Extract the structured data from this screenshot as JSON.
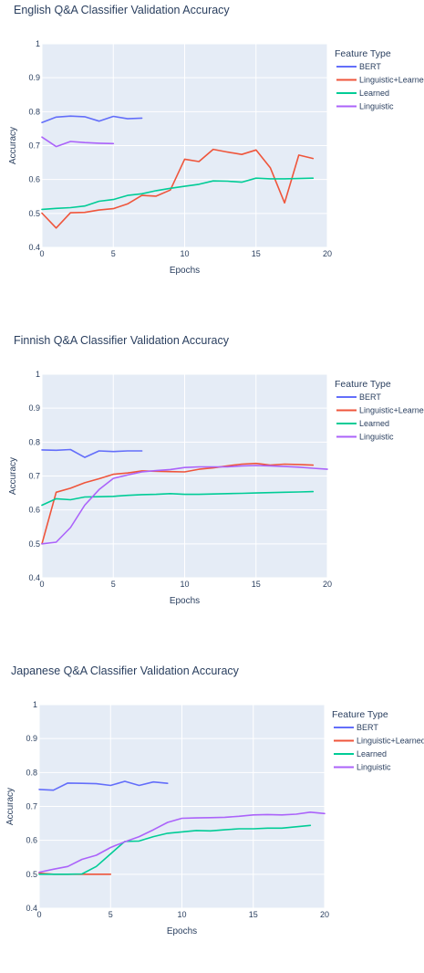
{
  "colors": {
    "BERT": "#636efa",
    "Linguistic+Learned": "#ef553b",
    "Learned": "#00cc96",
    "Linguistic": "#ab63fa",
    "plot_bg": "#e5ecf6",
    "grid": "#ffffff"
  },
  "chart_data": [
    {
      "type": "line",
      "title": "English Q&A Classifier Validation Accuracy",
      "xlabel": "Epochs",
      "ylabel": "Accuracy",
      "xlim": [
        0,
        20
      ],
      "ylim": [
        0.4,
        1
      ],
      "xticks": [
        "0",
        "5",
        "10",
        "15",
        "20"
      ],
      "yticks": [
        "0.4",
        "0.5",
        "0.6",
        "0.7",
        "0.8",
        "0.9",
        "1"
      ],
      "grid": true,
      "legend": {
        "title": "Feature Type",
        "position": "top-right",
        "entries": [
          "BERT",
          "Linguistic+Learned",
          "Learned",
          "Linguistic"
        ]
      },
      "series": [
        {
          "name": "BERT",
          "x": [
            0,
            1,
            2,
            3,
            4,
            5,
            6,
            7
          ],
          "y": [
            0.768,
            0.784,
            0.787,
            0.785,
            0.772,
            0.786,
            0.779,
            0.781
          ]
        },
        {
          "name": "Linguistic+Learned",
          "x": [
            0,
            1,
            2,
            3,
            4,
            5,
            6,
            7,
            8,
            9,
            10,
            11,
            12,
            13,
            14,
            15,
            16,
            17,
            18,
            19
          ],
          "y": [
            0.501,
            0.457,
            0.502,
            0.503,
            0.51,
            0.514,
            0.528,
            0.553,
            0.551,
            0.569,
            0.66,
            0.653,
            0.689,
            0.681,
            0.674,
            0.687,
            0.635,
            0.531,
            0.672,
            0.662
          ]
        },
        {
          "name": "Learned",
          "x": [
            0,
            1,
            2,
            3,
            4,
            5,
            6,
            7,
            8,
            9,
            10,
            11,
            12,
            13,
            14,
            15,
            16,
            17,
            18,
            19
          ],
          "y": [
            0.512,
            0.515,
            0.517,
            0.522,
            0.536,
            0.541,
            0.553,
            0.558,
            0.567,
            0.574,
            0.58,
            0.586,
            0.596,
            0.595,
            0.592,
            0.604,
            0.602,
            0.602,
            0.603,
            0.604
          ]
        },
        {
          "name": "Linguistic",
          "x": [
            0,
            1,
            2,
            3,
            4,
            5
          ],
          "y": [
            0.725,
            0.697,
            0.712,
            0.709,
            0.707,
            0.706
          ]
        }
      ]
    },
    {
      "type": "line",
      "title": "Finnish Q&A Classifier Validation Accuracy",
      "xlabel": "Epochs",
      "ylabel": "Accuracy",
      "xlim": [
        0,
        20
      ],
      "ylim": [
        0.4,
        1
      ],
      "xticks": [
        "0",
        "5",
        "10",
        "15",
        "20"
      ],
      "yticks": [
        "0.4",
        "0.5",
        "0.6",
        "0.7",
        "0.8",
        "0.9",
        "1"
      ],
      "grid": true,
      "legend": {
        "title": "Feature Type",
        "position": "top-right",
        "entries": [
          "BERT",
          "Linguistic+Learned",
          "Learned",
          "Linguistic"
        ]
      },
      "series": [
        {
          "name": "BERT",
          "x": [
            0,
            1,
            2,
            3,
            4,
            5,
            6,
            7
          ],
          "y": [
            0.777,
            0.776,
            0.778,
            0.755,
            0.774,
            0.772,
            0.774,
            0.774
          ]
        },
        {
          "name": "Linguistic+Learned",
          "x": [
            0,
            1,
            2,
            3,
            4,
            5,
            6,
            7,
            8,
            9,
            10,
            11,
            12,
            13,
            14,
            15,
            16,
            17,
            18,
            19
          ],
          "y": [
            0.5,
            0.652,
            0.664,
            0.68,
            0.692,
            0.705,
            0.709,
            0.715,
            0.714,
            0.713,
            0.712,
            0.72,
            0.724,
            0.73,
            0.735,
            0.737,
            0.732,
            0.735,
            0.734,
            0.732
          ]
        },
        {
          "name": "Learned",
          "x": [
            0,
            1,
            2,
            3,
            4,
            5,
            6,
            7,
            8,
            9,
            10,
            11,
            12,
            13,
            14,
            15,
            16,
            17,
            18,
            19
          ],
          "y": [
            0.614,
            0.633,
            0.63,
            0.638,
            0.639,
            0.64,
            0.643,
            0.645,
            0.646,
            0.648,
            0.646,
            0.646,
            0.647,
            0.648,
            0.649,
            0.65,
            0.651,
            0.652,
            0.653,
            0.654
          ]
        },
        {
          "name": "Linguistic",
          "x": [
            0,
            1,
            2,
            3,
            4,
            5,
            6,
            7,
            8,
            9,
            10,
            11,
            12,
            13,
            14,
            15,
            16,
            17,
            18,
            19,
            20
          ],
          "y": [
            0.5,
            0.505,
            0.548,
            0.614,
            0.66,
            0.693,
            0.703,
            0.712,
            0.716,
            0.719,
            0.725,
            0.727,
            0.727,
            0.727,
            0.73,
            0.731,
            0.73,
            0.728,
            0.726,
            0.723,
            0.72
          ]
        }
      ]
    },
    {
      "type": "line",
      "title": "Japanese Q&A Classifier Validation Accuracy",
      "xlabel": "Epochs",
      "ylabel": "Accuracy",
      "xlim": [
        0,
        20
      ],
      "ylim": [
        0.4,
        1
      ],
      "xticks": [
        "0",
        "5",
        "10",
        "15",
        "20"
      ],
      "yticks": [
        "0.4",
        "0.5",
        "0.6",
        "0.7",
        "0.8",
        "0.9",
        "1"
      ],
      "grid": true,
      "legend": {
        "title": "Feature Type",
        "position": "top-right",
        "entries": [
          "BERT",
          "Linguistic+Learned",
          "Learned",
          "Linguistic"
        ]
      },
      "series": [
        {
          "name": "BERT",
          "x": [
            0,
            1,
            2,
            3,
            4,
            5,
            6,
            7,
            8,
            9
          ],
          "y": [
            0.75,
            0.748,
            0.769,
            0.768,
            0.767,
            0.762,
            0.774,
            0.762,
            0.772,
            0.768
          ]
        },
        {
          "name": "Linguistic+Learned",
          "x": [
            0,
            1,
            2,
            3,
            4,
            5
          ],
          "y": [
            0.503,
            0.5,
            0.5,
            0.5,
            0.5,
            0.5
          ]
        },
        {
          "name": "Learned",
          "x": [
            0,
            1,
            2,
            3,
            4,
            5,
            6,
            7,
            8,
            9,
            10,
            11,
            12,
            13,
            14,
            15,
            16,
            17,
            18,
            19
          ],
          "y": [
            0.5,
            0.5,
            0.5,
            0.501,
            0.523,
            0.56,
            0.597,
            0.598,
            0.611,
            0.621,
            0.625,
            0.629,
            0.628,
            0.631,
            0.634,
            0.634,
            0.636,
            0.636,
            0.64,
            0.644
          ]
        },
        {
          "name": "Linguistic",
          "x": [
            0,
            1,
            2,
            3,
            4,
            5,
            6,
            7,
            8,
            9,
            10,
            11,
            12,
            13,
            14,
            15,
            16,
            17,
            18,
            19,
            20
          ],
          "y": [
            0.506,
            0.515,
            0.523,
            0.544,
            0.556,
            0.579,
            0.596,
            0.611,
            0.631,
            0.653,
            0.665,
            0.666,
            0.667,
            0.668,
            0.671,
            0.675,
            0.676,
            0.675,
            0.677,
            0.683,
            0.679
          ]
        }
      ]
    }
  ]
}
